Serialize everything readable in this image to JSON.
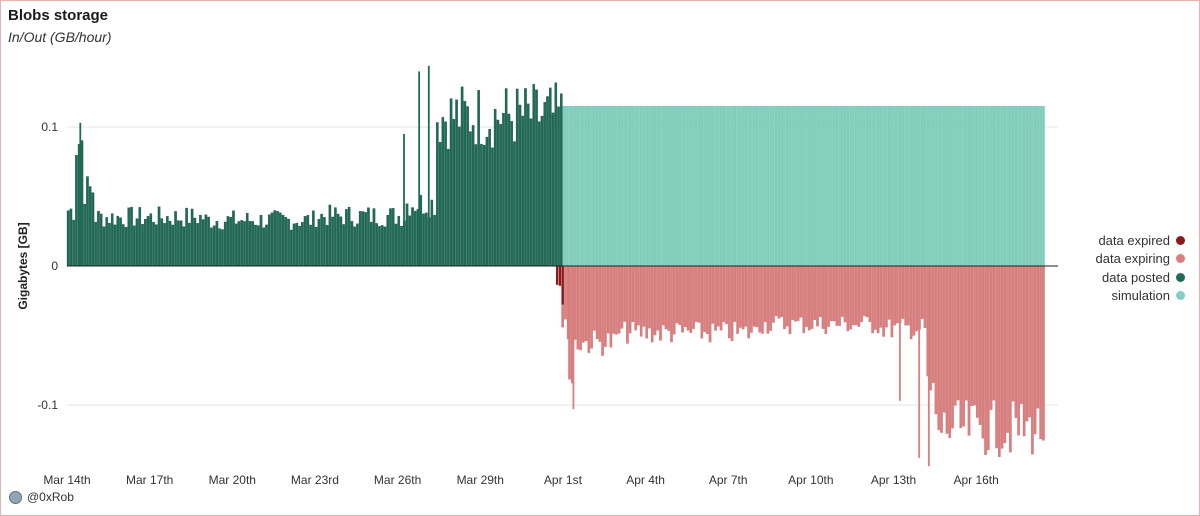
{
  "header": {
    "title": "Blobs storage",
    "subtitle": "In/Out (GB/hour)"
  },
  "footer": {
    "credit": "@0xRob"
  },
  "chart_data": {
    "type": "bar",
    "ylabel": "Gigabytes [GB]",
    "xlabel": "",
    "ylim": [
      -0.145,
      0.145
    ],
    "yticks": [
      {
        "value": 0.1,
        "label": "0.1"
      },
      {
        "value": 0,
        "label": "0"
      },
      {
        "value": -0.1,
        "label": "-0.1"
      }
    ],
    "xticks": [
      {
        "day": 0,
        "label": "Mar 14th"
      },
      {
        "day": 3,
        "label": "Mar 17th"
      },
      {
        "day": 6,
        "label": "Mar 20th"
      },
      {
        "day": 9,
        "label": "Mar 23rd"
      },
      {
        "day": 12,
        "label": "Mar 26th"
      },
      {
        "day": 15,
        "label": "Mar 29th"
      },
      {
        "day": 18,
        "label": "Apr 1st"
      },
      {
        "day": 21,
        "label": "Apr 4th"
      },
      {
        "day": 24,
        "label": "Apr 7th"
      },
      {
        "day": 27,
        "label": "Apr 10th"
      },
      {
        "day": 30,
        "label": "Apr 13th"
      },
      {
        "day": 33,
        "label": "Apr 16th"
      }
    ],
    "grid": true,
    "legend_position": "right",
    "series": [
      {
        "name": "data expired",
        "color": "#8b1a1a",
        "segments": [
          {
            "from_day": 17.75,
            "to_day": 17.95,
            "value": -0.015
          },
          {
            "from_day": 17.95,
            "to_day": 18.05,
            "value": -0.03
          }
        ]
      },
      {
        "name": "data expiring",
        "color": "#d97f7f",
        "segments": [
          {
            "from_day": 17.95,
            "to_day": 18.2,
            "value": -0.045
          },
          {
            "from_day": 18.2,
            "to_day": 18.4,
            "value": -0.08
          },
          {
            "from_day": 18.4,
            "to_day": 20.0,
            "value": -0.055
          },
          {
            "from_day": 20.0,
            "to_day": 25.0,
            "value": -0.048
          },
          {
            "from_day": 25.0,
            "to_day": 29.5,
            "value": -0.042
          },
          {
            "from_day": 29.5,
            "to_day": 31.2,
            "value": -0.045
          },
          {
            "from_day": 31.2,
            "to_day": 31.5,
            "value": -0.09
          },
          {
            "from_day": 31.5,
            "to_day": 35.5,
            "value": -0.117
          }
        ],
        "spikes": [
          {
            "day": 18.35,
            "value": -0.103
          },
          {
            "day": 30.2,
            "value": -0.097
          },
          {
            "day": 30.9,
            "value": -0.138
          },
          {
            "day": 31.25,
            "value": -0.144
          }
        ]
      },
      {
        "name": "data posted",
        "color": "#1f6b56",
        "segments": [
          {
            "from_day": 0.0,
            "to_day": 0.3,
            "value": 0.04
          },
          {
            "from_day": 0.3,
            "to_day": 0.6,
            "value": 0.09
          },
          {
            "from_day": 0.6,
            "to_day": 1.0,
            "value": 0.055
          },
          {
            "from_day": 1.0,
            "to_day": 5.0,
            "value": 0.035
          },
          {
            "from_day": 5.0,
            "to_day": 9.0,
            "value": 0.033
          },
          {
            "from_day": 9.0,
            "to_day": 12.3,
            "value": 0.036
          },
          {
            "from_day": 12.3,
            "to_day": 13.4,
            "value": 0.045
          },
          {
            "from_day": 13.4,
            "to_day": 18.0,
            "value": 0.108
          }
        ],
        "spikes": [
          {
            "day": 0.45,
            "value": 0.103
          },
          {
            "day": 12.75,
            "value": 0.14
          },
          {
            "day": 13.1,
            "value": 0.144
          },
          {
            "day": 12.2,
            "value": 0.095
          }
        ]
      },
      {
        "name": "simulation",
        "color": "#82cfbd",
        "segments": [
          {
            "from_day": 18.0,
            "to_day": 35.5,
            "value": 0.115
          }
        ]
      }
    ]
  }
}
